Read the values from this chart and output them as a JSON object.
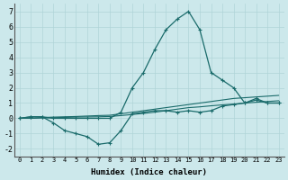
{
  "xlabel": "Humidex (Indice chaleur)",
  "bg_color": "#cce8eb",
  "grid_color": "#b0d4d8",
  "line_color": "#1a6b6b",
  "xlim": [
    -0.5,
    23.5
  ],
  "ylim": [
    -2.5,
    7.5
  ],
  "xticks": [
    0,
    1,
    2,
    3,
    4,
    5,
    6,
    7,
    8,
    9,
    10,
    11,
    12,
    13,
    14,
    15,
    16,
    17,
    18,
    19,
    20,
    21,
    22,
    23
  ],
  "yticks": [
    -2,
    -1,
    0,
    1,
    2,
    3,
    4,
    5,
    6,
    7
  ],
  "series_peak": [
    0.0,
    0.1,
    0.1,
    0.0,
    0.0,
    0.0,
    0.0,
    0.0,
    0.0,
    0.4,
    2.0,
    3.0,
    4.5,
    5.8,
    6.5,
    7.0,
    5.8,
    3.0,
    2.5,
    2.0,
    1.0,
    1.3,
    1.0,
    1.0
  ],
  "series_dip": [
    0.0,
    0.1,
    0.1,
    -0.3,
    -0.8,
    -1.0,
    -1.2,
    -1.7,
    -1.6,
    -0.8,
    0.3,
    0.4,
    0.5,
    0.5,
    0.4,
    0.5,
    0.4,
    0.5,
    0.8,
    0.9,
    1.0,
    1.2,
    1.0,
    1.0
  ],
  "series_trend1": [
    0.0,
    0.0,
    0.05,
    0.08,
    0.1,
    0.12,
    0.15,
    0.18,
    0.2,
    0.3,
    0.4,
    0.5,
    0.6,
    0.7,
    0.8,
    0.9,
    1.0,
    1.1,
    1.2,
    1.3,
    1.35,
    1.4,
    1.45,
    1.5
  ],
  "series_trend2": [
    0.0,
    0.0,
    0.02,
    0.04,
    0.06,
    0.08,
    0.09,
    0.1,
    0.12,
    0.18,
    0.25,
    0.32,
    0.4,
    0.5,
    0.6,
    0.7,
    0.75,
    0.82,
    0.88,
    0.93,
    1.0,
    1.05,
    1.1,
    1.15
  ]
}
